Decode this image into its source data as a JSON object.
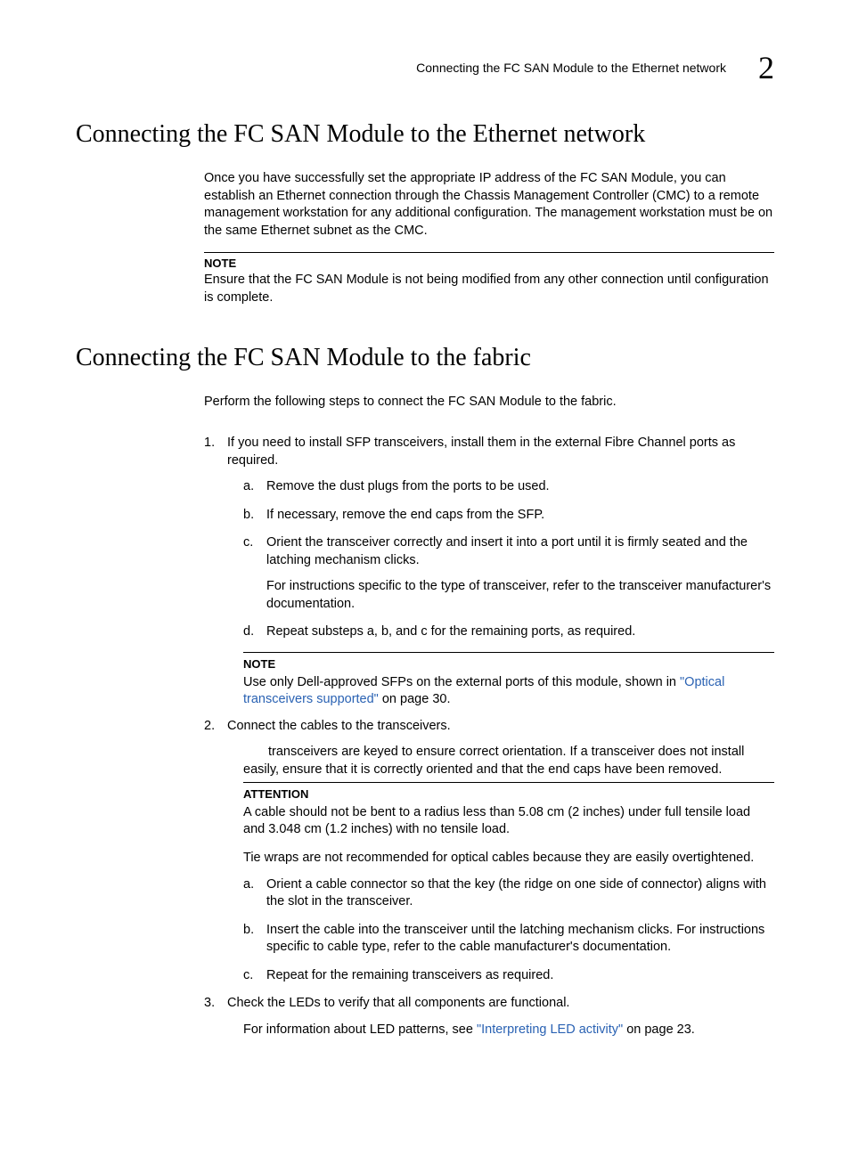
{
  "colors": {
    "text": "#000000",
    "link": "#2a62b3",
    "background": "#ffffff",
    "rule": "#000000"
  },
  "typography": {
    "body_family": "Arial, Helvetica, sans-serif",
    "heading_family": "Georgia, Times New Roman, serif",
    "body_size_pt": 11,
    "h1_size_pt": 21,
    "chapnum_size_pt": 27
  },
  "header": {
    "running_title": "Connecting the FC SAN Module to the Ethernet network",
    "chapter_number": "2"
  },
  "sections": {
    "s1": {
      "title": "Connecting the FC SAN Module to the Ethernet network",
      "para1": "Once you have successfully set the appropriate IP address of the FC SAN Module, you can establish an Ethernet connection through the Chassis Management Controller (CMC) to a remote management workstation for any additional configuration. The management workstation must be on the same Ethernet subnet as the CMC.",
      "note_label": "NOTE",
      "note_text": "Ensure that the FC SAN Module is not being modified from any other connection until configuration is complete."
    },
    "s2": {
      "title": "Connecting the FC SAN Module to the fabric",
      "intro": "Perform the following steps to connect the FC SAN Module to the fabric.",
      "steps": {
        "s1": {
          "text": "If you need to install SFP transceivers, install them in the external Fibre Channel ports as required.",
          "sub": {
            "a": "Remove the dust plugs from the ports to be used.",
            "b": "If necessary, remove the end caps from the SFP.",
            "c": "Orient the transceiver correctly and insert it into a port until it is firmly seated and the latching mechanism clicks.",
            "c_para": "For instructions specific to the type of transceiver, refer to the transceiver manufacturer's documentation.",
            "d": "Repeat substeps a, b, and c for the remaining ports, as required."
          },
          "note_label": "NOTE",
          "note_pre": "Use only Dell-approved SFPs on the external ports of this module, shown in ",
          "note_link": "\"Optical transceivers supported\"",
          "note_post": " on page 30."
        },
        "s2": {
          "text": "Connect the cables to the transceivers.",
          "para": "transceivers are keyed to ensure correct orientation. If a transceiver does not install easily, ensure that it is correctly oriented and that the end caps have been removed.",
          "attn_label": "ATTENTION",
          "attn_text": "A cable should not be bent to a radius less than 5.08 cm (2 inches) under full tensile load and 3.048 cm (1.2 inches) with no tensile load.",
          "tie_para": "Tie wraps are not recommended for optical cables because they are easily overtightened.",
          "sub": {
            "a": "Orient a cable connector so that the key (the ridge on one side of connector) aligns with the slot in the transceiver.",
            "b": "Insert the cable into the transceiver until the latching mechanism clicks. For instructions specific to cable type, refer to the cable manufacturer's documentation.",
            "c": "Repeat for the remaining transceivers as required."
          }
        },
        "s3": {
          "text": "Check the LEDs to verify that all components are functional.",
          "para_pre": "For information about LED patterns, see ",
          "para_link": "\"Interpreting LED activity\"",
          "para_post": " on page 23."
        }
      }
    }
  }
}
